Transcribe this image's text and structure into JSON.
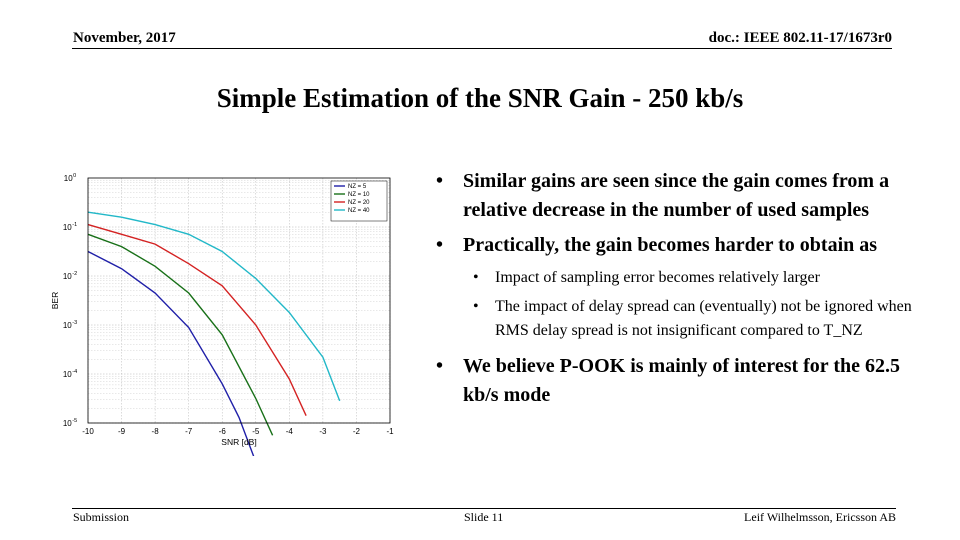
{
  "header": {
    "date": "November, 2017",
    "doc_id": "doc.: IEEE 802.11-17/1673r0"
  },
  "title": "Simple Estimation of the SNR Gain - 250 kb/s",
  "bullets": [
    {
      "text": "Similar gains are seen since the gain comes from a relative decrease in the number of used samples"
    },
    {
      "text": "Practically, the gain becomes harder to obtain as",
      "sub": [
        "Impact of sampling error becomes relatively larger",
        "The impact of delay spread can (eventually) not be ignored when RMS delay spread is not insignificant compared to T_NZ"
      ]
    },
    {
      "text": "We believe P-OOK is mainly of interest for the 62.5 kb/s mode"
    }
  ],
  "footer": {
    "left": "Submission",
    "center": "Slide 11",
    "right": "Leif Wilhelmsson, Ericsson AB"
  },
  "chart_data": {
    "type": "line",
    "xlabel": "SNR [dB]",
    "ylabel": "BER",
    "xlim": [
      -10,
      -1
    ],
    "ylim_log10": [
      -5,
      0
    ],
    "y_scale": "log",
    "grid": true,
    "legend_position": "top-right",
    "x_ticks": [
      "-10",
      "-9",
      "-8",
      "-7",
      "-6",
      "-5",
      "-4",
      "-3",
      "-2",
      "-1"
    ],
    "y_ticks": [
      {
        "base": "10",
        "exp": "0"
      },
      {
        "base": "10",
        "exp": "-1"
      },
      {
        "base": "10",
        "exp": "-2"
      },
      {
        "base": "10",
        "exp": "-3"
      },
      {
        "base": "10",
        "exp": "-4"
      },
      {
        "base": "10",
        "exp": "-5"
      }
    ],
    "series": [
      {
        "name": "NZ = 5",
        "color": "#1f1fa8",
        "x": [
          -10,
          -9,
          -8,
          -7,
          -6,
          -5.5,
          -5
        ],
        "y": [
          0.0316,
          0.0141,
          0.0045,
          0.00089,
          6.3e-05,
          1.3e-05,
          1.6e-06
        ]
      },
      {
        "name": "NZ = 10",
        "color": "#187018",
        "x": [
          -10,
          -9,
          -8,
          -7,
          -6,
          -5,
          -4.5
        ],
        "y": [
          0.0708,
          0.0398,
          0.0158,
          0.0045,
          0.00063,
          3.16e-05,
          5.6e-06
        ]
      },
      {
        "name": "NZ = 20",
        "color": "#d42222",
        "x": [
          -10,
          -9,
          -8,
          -7,
          -6,
          -5,
          -4,
          -3.5
        ],
        "y": [
          0.1122,
          0.0708,
          0.0447,
          0.0178,
          0.0063,
          0.001,
          7.9e-05,
          1.41e-05
        ]
      },
      {
        "name": "NZ = 40",
        "color": "#22b8c8",
        "x": [
          -10,
          -9,
          -8,
          -7,
          -6,
          -5,
          -4,
          -3,
          -2.5
        ],
        "y": [
          0.2,
          0.1585,
          0.1122,
          0.0708,
          0.0316,
          0.0089,
          0.0018,
          0.00022,
          2.82e-05
        ]
      }
    ]
  }
}
